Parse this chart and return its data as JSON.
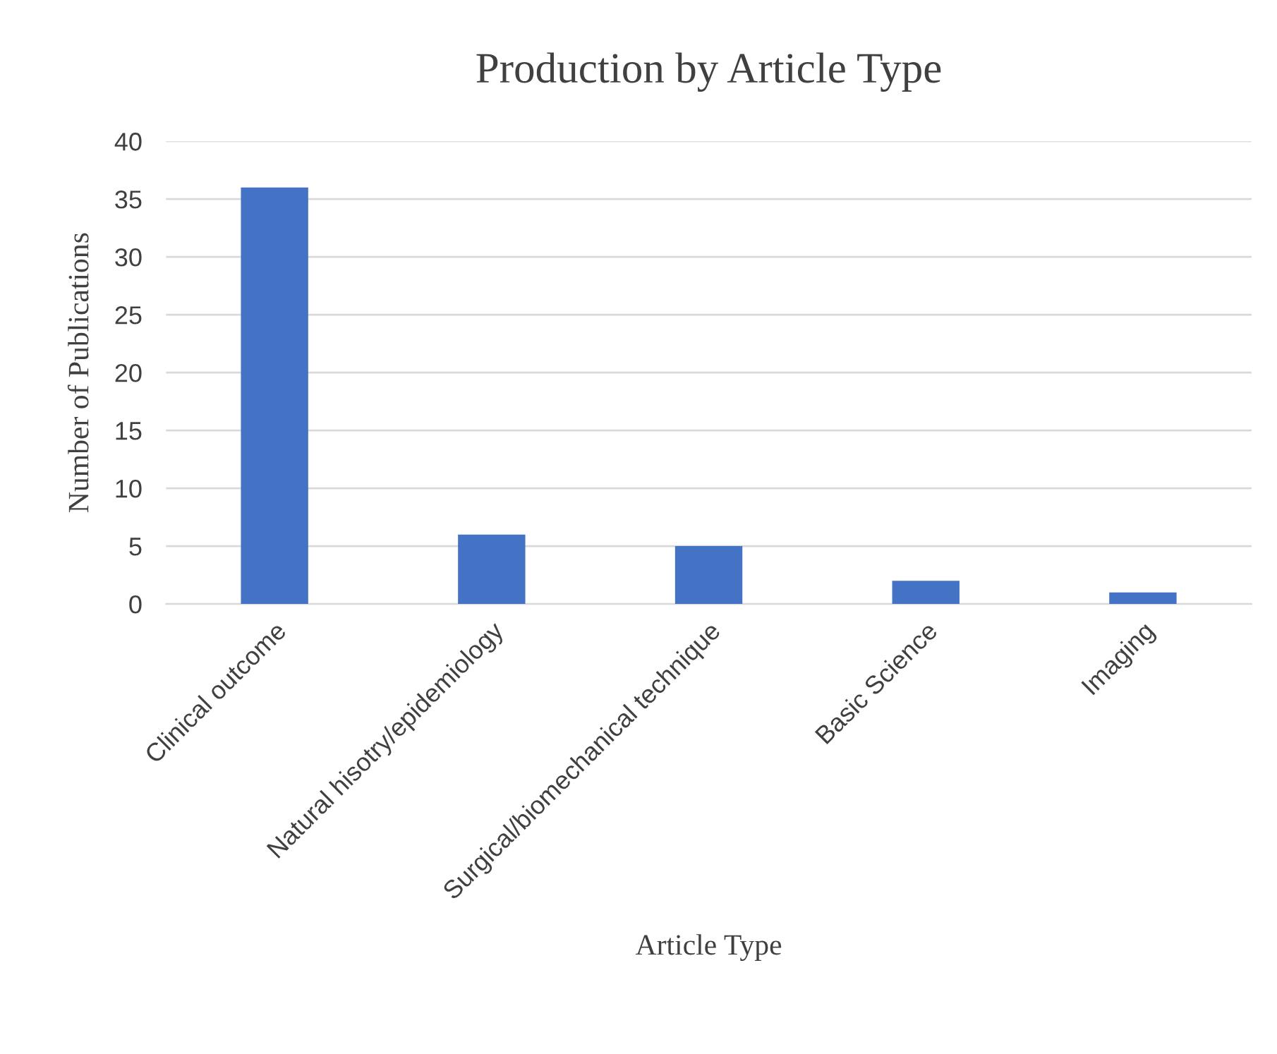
{
  "chart_data": {
    "type": "bar",
    "title": "Production by Article Type",
    "xlabel": "Article Type",
    "ylabel": "Number of Publications",
    "categories": [
      "Clinical outcome",
      "Natural hisotry/epidemiology",
      "Surgical/biomechanical technique",
      "Basic Science",
      "Imaging"
    ],
    "values": [
      36,
      6,
      5,
      2,
      1
    ],
    "color": "#4472c4",
    "ylim": [
      0,
      40
    ],
    "yticks": [
      0,
      5,
      10,
      15,
      20,
      25,
      30,
      35,
      40
    ],
    "grid": "y",
    "legend": false
  }
}
